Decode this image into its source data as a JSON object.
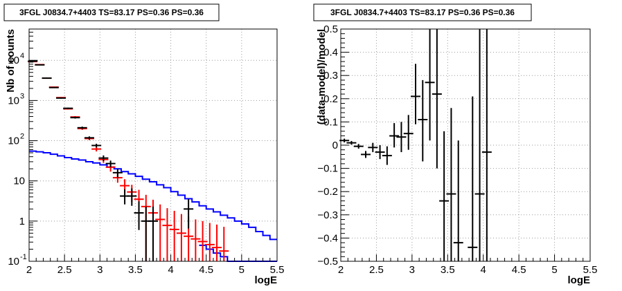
{
  "chart_data": [
    {
      "type": "step-histogram",
      "title": "3FGL J0834.7+4403 TS=83.17 PS=0.36 PS=0.36",
      "xlabel": "logE",
      "ylabel": "Nb of counts",
      "xlim": [
        2,
        5.5
      ],
      "ylim": [
        0.1,
        60000
      ],
      "yscale": "log",
      "grid": true,
      "xticks": [
        "2",
        "2.5",
        "3",
        "3.5",
        "4",
        "4.5",
        "5",
        "5.5"
      ],
      "yticks": [
        {
          "v": 0.1,
          "label": "10",
          "exp": "-1"
        },
        {
          "v": 1,
          "label": "1",
          "exp": ""
        },
        {
          "v": 10,
          "label": "10",
          "exp": ""
        },
        {
          "v": 100,
          "label": "10",
          "exp": "2"
        },
        {
          "v": 1000,
          "label": "10",
          "exp": "3"
        },
        {
          "v": 10000,
          "label": "10",
          "exp": "4"
        }
      ],
      "colors": {
        "data": "#000000",
        "model": "#ff0000",
        "source": "#0000ff"
      },
      "x": [
        2.05,
        2.15,
        2.25,
        2.35,
        2.45,
        2.55,
        2.65,
        2.75,
        2.85,
        2.95,
        3.05,
        3.15,
        3.25,
        3.35,
        3.45,
        3.55,
        3.65,
        3.75,
        3.85,
        3.95,
        4.05,
        4.15,
        4.25,
        4.35,
        4.45,
        4.55,
        4.65,
        4.75,
        4.85,
        4.95,
        5.05,
        5.15,
        5.25,
        5.35,
        5.45
      ],
      "data_points": [
        {
          "x": 2.05,
          "y": 9500,
          "lo": 9300,
          "hi": 9700
        },
        {
          "x": 2.15,
          "y": 7700,
          "lo": 7550,
          "hi": 7850
        },
        {
          "x": 2.25,
          "y": 3600,
          "lo": 3500,
          "hi": 3700
        },
        {
          "x": 2.35,
          "y": 2100,
          "lo": 2050,
          "hi": 2150
        },
        {
          "x": 2.45,
          "y": 1150,
          "lo": 1110,
          "hi": 1190
        },
        {
          "x": 2.55,
          "y": 640,
          "lo": 615,
          "hi": 665
        },
        {
          "x": 2.65,
          "y": 375,
          "lo": 355,
          "hi": 395
        },
        {
          "x": 2.75,
          "y": 210,
          "lo": 196,
          "hi": 224
        },
        {
          "x": 2.85,
          "y": 118,
          "lo": 108,
          "hi": 128
        },
        {
          "x": 2.95,
          "y": 76,
          "lo": 68,
          "hi": 84
        },
        {
          "x": 3.05,
          "y": 37,
          "lo": 31,
          "hi": 43
        },
        {
          "x": 3.15,
          "y": 27,
          "lo": 22,
          "hi": 32
        },
        {
          "x": 3.25,
          "y": 16,
          "lo": 12,
          "hi": 20
        },
        {
          "x": 3.35,
          "y": 4.2,
          "lo": 2.6,
          "hi": 6.2
        },
        {
          "x": 3.45,
          "y": 4.2,
          "lo": 2.4,
          "hi": 6.5
        },
        {
          "x": 3.55,
          "y": 1.6,
          "lo": 0.6,
          "hi": 3.1
        },
        {
          "x": 3.65,
          "y": 1.0,
          "lo": 0.1,
          "hi": 2.3
        },
        {
          "x": 3.75,
          "y": 1.0,
          "lo": 0.1,
          "hi": 2.3
        },
        {
          "x": 4.25,
          "y": 2.0,
          "lo": 0.65,
          "hi": 3.5
        }
      ],
      "model_points": [
        {
          "x": 2.05,
          "y": 9300,
          "lo": 9100,
          "hi": 9500
        },
        {
          "x": 2.15,
          "y": 7800,
          "lo": 7650,
          "hi": 7950
        },
        {
          "x": 2.25,
          "y": 3600,
          "lo": 3500,
          "hi": 3700
        },
        {
          "x": 2.35,
          "y": 2150,
          "lo": 2100,
          "hi": 2200
        },
        {
          "x": 2.45,
          "y": 1180,
          "lo": 1140,
          "hi": 1220
        },
        {
          "x": 2.55,
          "y": 620,
          "lo": 595,
          "hi": 645
        },
        {
          "x": 2.65,
          "y": 390,
          "lo": 370,
          "hi": 410
        },
        {
          "x": 2.75,
          "y": 200,
          "lo": 186,
          "hi": 214
        },
        {
          "x": 2.85,
          "y": 113,
          "lo": 103,
          "hi": 123
        },
        {
          "x": 2.95,
          "y": 62,
          "lo": 54,
          "hi": 70
        },
        {
          "x": 3.05,
          "y": 34,
          "lo": 28,
          "hi": 40
        },
        {
          "x": 3.15,
          "y": 22,
          "lo": 17,
          "hi": 27
        },
        {
          "x": 3.25,
          "y": 12,
          "lo": 9,
          "hi": 16
        },
        {
          "x": 3.35,
          "y": 7.6,
          "lo": 5,
          "hi": 11
        },
        {
          "x": 3.45,
          "y": 5.3,
          "lo": 3,
          "hi": 8
        },
        {
          "x": 3.55,
          "y": 3.5,
          "lo": 1.8,
          "hi": 6
        },
        {
          "x": 3.65,
          "y": 2.3,
          "lo": 0.1,
          "hi": 4.5
        },
        {
          "x": 3.75,
          "y": 1.6,
          "lo": 0.1,
          "hi": 3.4
        },
        {
          "x": 3.85,
          "y": 1.1,
          "lo": 0.1,
          "hi": 2.6
        },
        {
          "x": 3.95,
          "y": 0.78,
          "lo": 0.1,
          "hi": 2.1
        },
        {
          "x": 4.05,
          "y": 0.62,
          "lo": 0.1,
          "hi": 1.8
        },
        {
          "x": 4.15,
          "y": 0.5,
          "lo": 0.1,
          "hi": 1.5
        },
        {
          "x": 4.25,
          "y": 0.42,
          "lo": 0.1,
          "hi": 1.3
        },
        {
          "x": 4.35,
          "y": 0.36,
          "lo": 0.1,
          "hi": 1.1
        },
        {
          "x": 4.45,
          "y": 0.31,
          "lo": 0.1,
          "hi": 1.0
        },
        {
          "x": 4.55,
          "y": 0.26,
          "lo": 0.1,
          "hi": 0.9
        },
        {
          "x": 4.65,
          "y": 0.22,
          "lo": 0.1,
          "hi": 0.82
        },
        {
          "x": 4.75,
          "y": 0.18,
          "lo": 0.1,
          "hi": 0.72
        }
      ],
      "source_hist": [
        55,
        53,
        50,
        46,
        42,
        38,
        35,
        33,
        30,
        28,
        25,
        22,
        20,
        17,
        15,
        13,
        11,
        9.5,
        8,
        6.8,
        5.4,
        4.4,
        3.6,
        3,
        2.4,
        2,
        1.7,
        1.4,
        1.2,
        1.0,
        0.85,
        0.7,
        0.55,
        0.44,
        0.35
      ],
      "source_hist_2": [
        null,
        null,
        null,
        null,
        null,
        null,
        null,
        null,
        null,
        null,
        null,
        null,
        null,
        null,
        null,
        null,
        null,
        null,
        null,
        null,
        null,
        null,
        null,
        null,
        0.25,
        0.2,
        0.16,
        0.13,
        0.1,
        0.1,
        0.1,
        0.1,
        0.1,
        0.1,
        0.1
      ]
    },
    {
      "type": "scatter-errorbars",
      "title": "3FGL J0834.7+4403 TS=83.17 PS=0.36 PS=0.36",
      "xlabel": "logE",
      "ylabel": "(data-model)/model",
      "xlim": [
        2,
        5.5
      ],
      "ylim": [
        -0.5,
        0.5
      ],
      "grid": true,
      "xticks": [
        "2",
        "2.5",
        "3",
        "3.5",
        "4",
        "4.5",
        "5",
        "5.5"
      ],
      "yticks": [
        "-0.5",
        "-0.4",
        "-0.3",
        "-0.2",
        "-0.1",
        "0",
        "0.1",
        "0.2",
        "0.3",
        "0.4",
        "0.5"
      ],
      "points": [
        {
          "x": 2.05,
          "y": 0.02,
          "lo": 0.012,
          "hi": 0.028
        },
        {
          "x": 2.15,
          "y": 0.01,
          "lo": 0.002,
          "hi": 0.018
        },
        {
          "x": 2.25,
          "y": -0.005,
          "lo": -0.015,
          "hi": 0.005
        },
        {
          "x": 2.35,
          "y": -0.04,
          "lo": -0.055,
          "hi": -0.025
        },
        {
          "x": 2.45,
          "y": -0.01,
          "lo": -0.03,
          "hi": 0.01
        },
        {
          "x": 2.55,
          "y": -0.03,
          "lo": -0.06,
          "hi": 0.0
        },
        {
          "x": 2.65,
          "y": -0.045,
          "lo": -0.085,
          "hi": -0.005
        },
        {
          "x": 2.75,
          "y": 0.04,
          "lo": -0.01,
          "hi": 0.095
        },
        {
          "x": 2.85,
          "y": 0.035,
          "lo": -0.03,
          "hi": 0.1
        },
        {
          "x": 2.95,
          "y": 0.05,
          "lo": -0.02,
          "hi": 0.13
        },
        {
          "x": 3.05,
          "y": 0.21,
          "lo": 0.09,
          "hi": 0.35
        },
        {
          "x": 3.15,
          "y": 0.11,
          "lo": -0.07,
          "hi": 0.28
        },
        {
          "x": 3.25,
          "y": 0.27,
          "lo": 0.02,
          "hi": 0.5
        },
        {
          "x": 3.35,
          "y": 0.22,
          "lo": -0.1,
          "hi": 0.5
        },
        {
          "x": 3.45,
          "y": -0.24,
          "lo": -0.5,
          "hi": 0.06
        },
        {
          "x": 3.55,
          "y": -0.21,
          "lo": -0.5,
          "hi": 0.16
        },
        {
          "x": 3.65,
          "y": -0.42,
          "lo": -0.5,
          "hi": 0.02
        },
        {
          "x": 3.85,
          "y": -0.44,
          "lo": -0.5,
          "hi": 0.21
        },
        {
          "x": 3.95,
          "y": -0.21,
          "lo": -0.5,
          "hi": 0.5
        },
        {
          "x": 4.05,
          "y": -0.03,
          "lo": -0.5,
          "hi": 0.5
        }
      ]
    }
  ]
}
